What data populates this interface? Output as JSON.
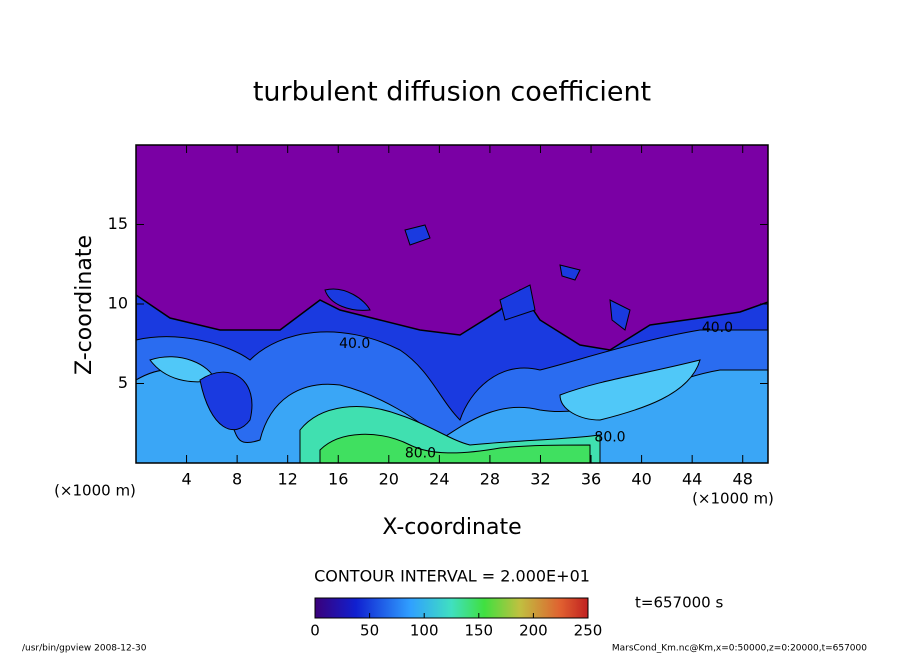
{
  "chart_data": {
    "type": "contour",
    "title": "turbulent diffusion coefficient",
    "x_label": "X-coordinate",
    "y_label": "Z-coordinate",
    "x_unit": "(×1000 m)",
    "y_unit": "(×1000 m)",
    "xlim": [
      0,
      50
    ],
    "ylim": [
      0,
      20
    ],
    "xticks": [
      4,
      8,
      12,
      16,
      20,
      24,
      28,
      32,
      36,
      40,
      44,
      48
    ],
    "yticks": [
      5,
      10,
      15
    ],
    "contour_labels": [
      {
        "label": "40.0",
        "x": 17.3,
        "z": 7.5
      },
      {
        "label": "40.0",
        "x": 46,
        "z": 8.5
      },
      {
        "label": "80.0",
        "x": 22.5,
        "z": 0.6
      },
      {
        "label": "80.0",
        "x": 37.5,
        "z": 1.6
      }
    ],
    "contour_interval": "CONTOUR INTERVAL = 2.000E+01",
    "colorbar": {
      "lim": [
        0,
        250
      ],
      "ticks": [
        0,
        50,
        100,
        150,
        200,
        250
      ]
    },
    "time_label": "t=657000 s"
  },
  "footer": {
    "left": "/usr/bin/gpview   2008-12-30",
    "right": "MarsCond_Km.nc@Km,x=0:50000,z=0:20000,t=657000"
  }
}
